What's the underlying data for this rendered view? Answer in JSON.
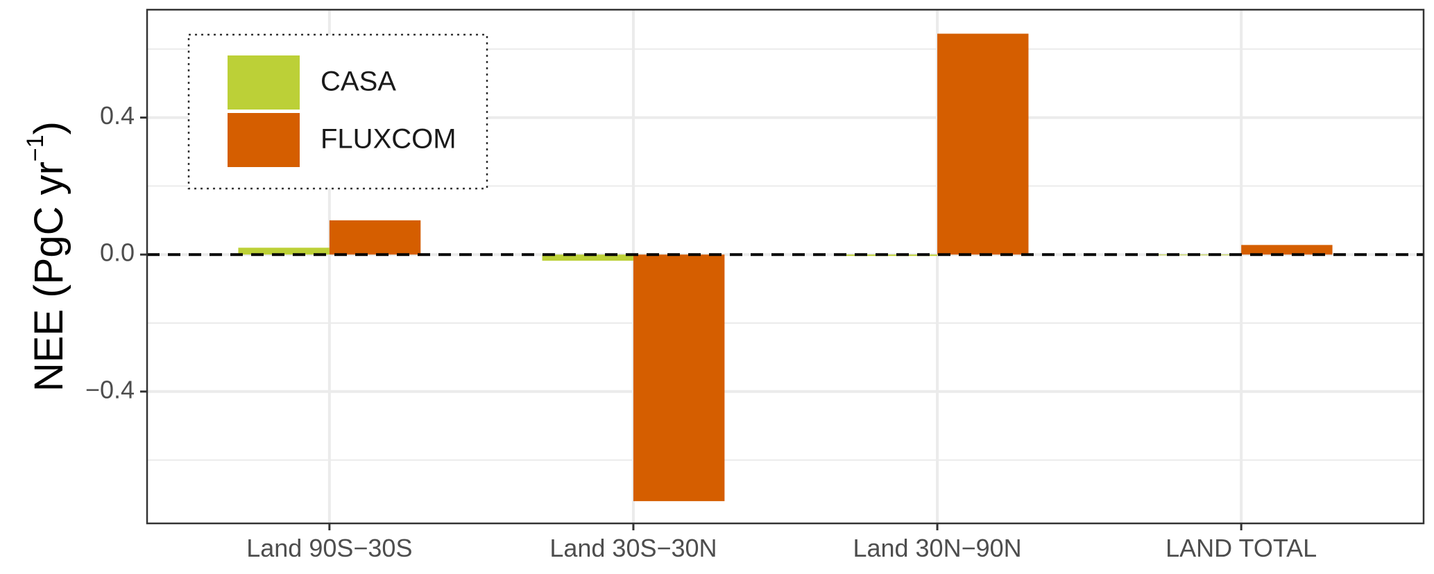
{
  "chart_data": {
    "type": "bar",
    "title": "",
    "xlabel": "",
    "ylabel": "NEE (PgC yr",
    "ylabel_sup": "−1",
    "ylabel_close": ")",
    "categories": [
      "Land 90S−30S",
      "Land 30S−30N",
      "Land 30N−90N",
      "LAND TOTAL"
    ],
    "series": [
      {
        "name": "CASA",
        "color": "#bcd037",
        "values": [
          0.02,
          -0.018,
          -0.004,
          -0.002
        ]
      },
      {
        "name": "FLUXCOM",
        "color": "#d55e00",
        "values": [
          0.1,
          -0.72,
          0.645,
          0.028
        ]
      }
    ],
    "ylim": [
      -0.785,
      0.715
    ],
    "yticks": [
      -0.4,
      0.0,
      0.4
    ],
    "ytick_labels": [
      "−0.4",
      "0.0",
      "0.4"
    ],
    "grid": true,
    "zero_line": "dashed",
    "legend_position": "top-left"
  }
}
